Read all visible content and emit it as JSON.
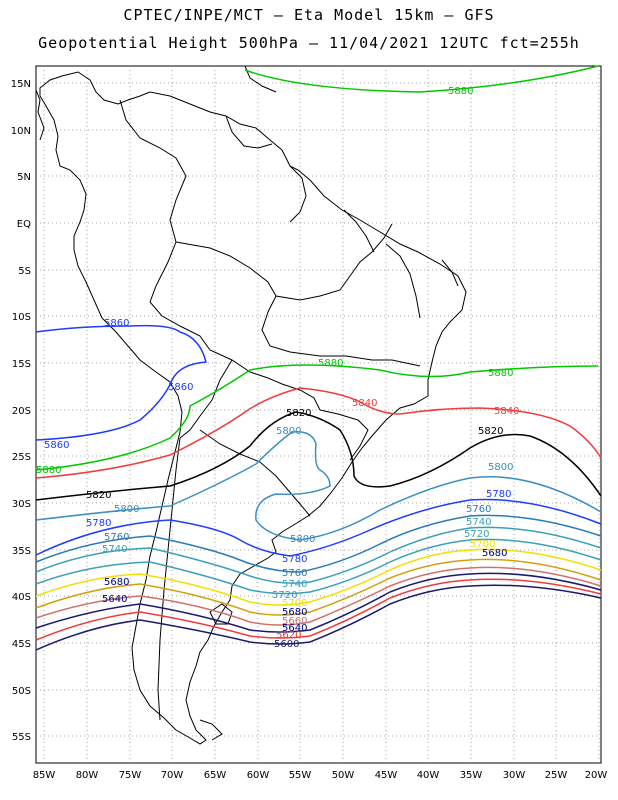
{
  "title_line1": "CPTEC/INPE/MCT –  Eta Model 15km – GFS",
  "title_line2": "Geopotential Height 500hPa – 11/04/2021 12UTC fct=255h",
  "lat_labels": [
    "15N",
    "10N",
    "5N",
    "EQ",
    "5S",
    "10S",
    "15S",
    "20S",
    "25S",
    "30S",
    "35S",
    "40S",
    "45S",
    "50S",
    "55S"
  ],
  "lon_labels": [
    "85W",
    "80W",
    "75W",
    "70W",
    "65W",
    "60W",
    "55W",
    "50W",
    "45W",
    "40W",
    "35W",
    "30W",
    "25W",
    "20W"
  ],
  "contour_levels": [
    {
      "value": "5880",
      "color": "#00c800"
    },
    {
      "value": "5860",
      "color": "#1e3cff"
    },
    {
      "value": "5840",
      "color": "#ef3b3b"
    },
    {
      "value": "5820",
      "color": "#000000"
    },
    {
      "value": "5800",
      "color": "#3a8fc4"
    },
    {
      "value": "5780",
      "color": "#1e3cff"
    },
    {
      "value": "5760",
      "color": "#2a7ab8"
    },
    {
      "value": "5740",
      "color": "#3aa0b8"
    },
    {
      "value": "5720",
      "color": "#3aa0b8"
    },
    {
      "value": "5700",
      "color": "#f0e000"
    },
    {
      "value": "5680",
      "color": "#d2a010"
    },
    {
      "value": "5660",
      "color": "#d07070"
    },
    {
      "value": "5640",
      "color": "#ef3b3b"
    },
    {
      "value": "5620",
      "color": "#ef3b3b"
    },
    {
      "value": "5600",
      "color": "#1a1a6e"
    }
  ]
}
